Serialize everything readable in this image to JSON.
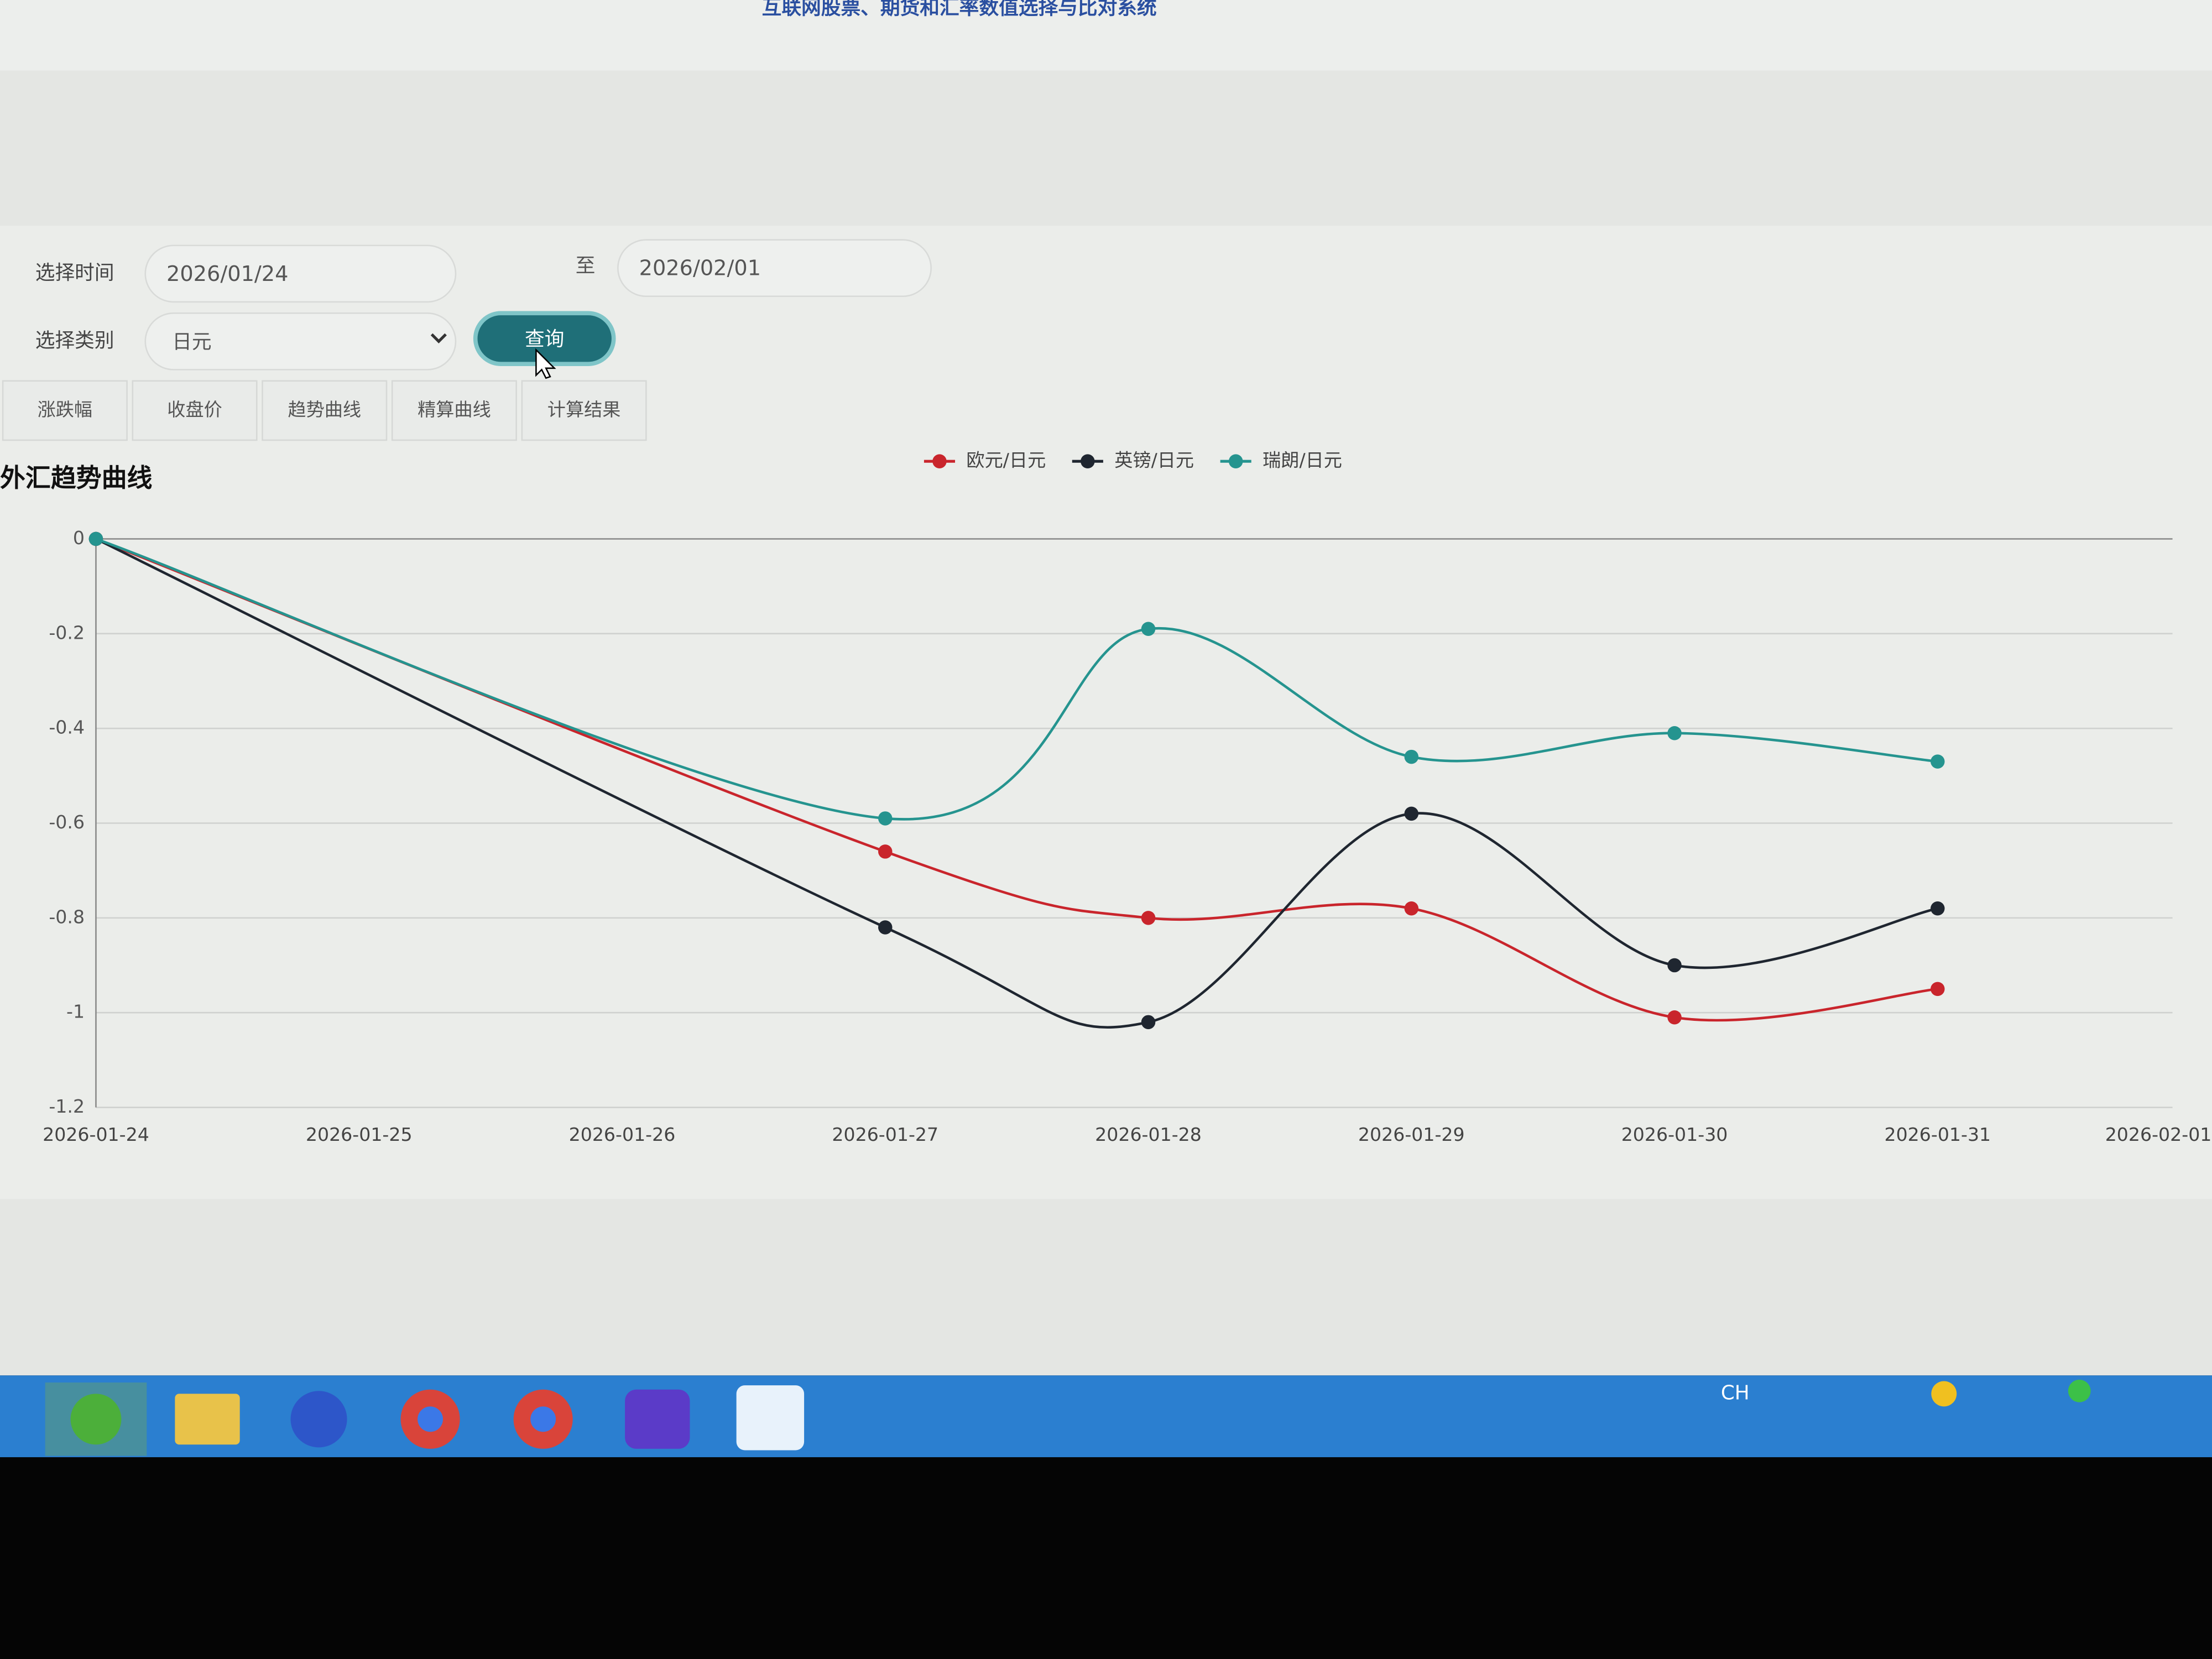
{
  "header": {
    "title": "互联网股票、期货和汇率数值选择与比对系统"
  },
  "form": {
    "time_label": "选择时间",
    "start": "2026/01/24",
    "to": "至",
    "end": "2026/02/01",
    "category_label": "选择类别",
    "category": "日元",
    "button": "查询"
  },
  "tabs": [
    "涨跌幅",
    "收盘价",
    "趋势曲线",
    "精算曲线",
    "计算结果"
  ],
  "chart_data": {
    "type": "line",
    "title": "外汇趋势曲线",
    "categories": [
      "2026-01-24",
      "2026-01-25",
      "2026-01-26",
      "2026-01-27",
      "2026-01-28",
      "2026-01-29",
      "2026-01-30",
      "2026-01-31",
      "2026-02-01"
    ],
    "ylim": [
      -1.2,
      0
    ],
    "yticks": [
      0,
      -0.2,
      -0.4,
      -0.6,
      -0.8,
      -1,
      -1.2
    ],
    "grid": true,
    "smooth": true,
    "series": [
      {
        "name": "欧元/日元",
        "color": "#c9252c",
        "x": [
          "2026-01-24",
          "2026-01-27",
          "2026-01-28",
          "2026-01-29",
          "2026-01-30",
          "2026-01-31"
        ],
        "values": [
          0,
          -0.66,
          -0.8,
          -0.78,
          -1.01,
          -0.95
        ]
      },
      {
        "name": "英镑/日元",
        "color": "#1f2630",
        "x": [
          "2026-01-24",
          "2026-01-27",
          "2026-01-28",
          "2026-01-29",
          "2026-01-30",
          "2026-01-31"
        ],
        "values": [
          0,
          -0.82,
          -1.02,
          -0.58,
          -0.9,
          -0.78
        ]
      },
      {
        "name": "瑞朗/日元",
        "color": "#25948f",
        "x": [
          "2026-01-24",
          "2026-01-27",
          "2026-01-28",
          "2026-01-29",
          "2026-01-30",
          "2026-01-31"
        ],
        "values": [
          0,
          -0.59,
          -0.19,
          -0.46,
          -0.41,
          -0.47
        ]
      }
    ]
  },
  "taskbar": {
    "lang": "CH"
  }
}
